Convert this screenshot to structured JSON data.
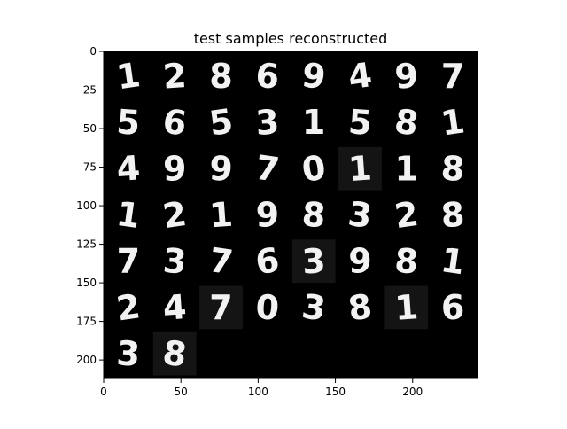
{
  "title": "test samples reconstructed",
  "image_grid": {
    "x_ticks": [
      "0",
      "50",
      "100",
      "150",
      "200"
    ],
    "y_ticks": [
      "0",
      "25",
      "50",
      "75",
      "100",
      "125",
      "150",
      "175",
      "200"
    ],
    "x_tick_values": [
      0,
      50,
      100,
      150,
      200
    ],
    "y_tick_values": [
      0,
      25,
      50,
      75,
      100,
      125,
      150,
      175,
      200
    ],
    "xlim": [
      0,
      242
    ],
    "ylim": [
      0,
      212
    ],
    "tile_size": 28,
    "tile_pitch": 30,
    "columns": 8,
    "rows": [
      [
        "1",
        "2",
        "8",
        "6",
        "9",
        "4",
        "9",
        "7"
      ],
      [
        "5",
        "6",
        "5",
        "3",
        "1",
        "5",
        "8",
        "1"
      ],
      [
        "4",
        "9",
        "9",
        "7",
        "0",
        "1",
        "1",
        "8"
      ],
      [
        "1",
        "2",
        "1",
        "9",
        "8",
        "3",
        "2",
        "8"
      ],
      [
        "7",
        "3",
        "7",
        "6",
        "3",
        "9",
        "8",
        "1"
      ],
      [
        "2",
        "4",
        "7",
        "0",
        "3",
        "8",
        "1",
        "6"
      ],
      [
        "3",
        "8"
      ]
    ],
    "highlight_tiles": [
      [
        2,
        5
      ],
      [
        4,
        4
      ],
      [
        5,
        2
      ],
      [
        5,
        6
      ],
      [
        6,
        1
      ]
    ]
  }
}
